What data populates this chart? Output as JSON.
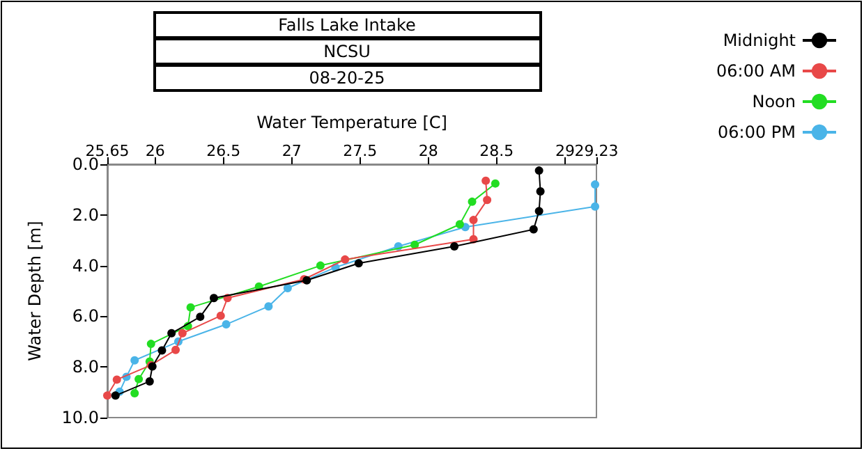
{
  "chart_data": {
    "type": "line",
    "title": "Falls Lake Intake",
    "subtitle": "NCSU",
    "annotations": [
      "08-20-25"
    ],
    "xlabel": "Water Temperature [C]",
    "ylabel": "Water Depth [m]",
    "xlim": [
      25.65,
      29.23
    ],
    "xticks": [
      25.65,
      26,
      26.5,
      27,
      27.5,
      28,
      28.5,
      29,
      29.23
    ],
    "ylim": [
      10,
      0
    ],
    "yticks": [
      {
        "value": 0,
        "label": "0.0"
      },
      {
        "value": 2,
        "label": "2.0"
      },
      {
        "value": 4,
        "label": "4.0"
      },
      {
        "value": 6,
        "label": "6.0"
      },
      {
        "value": 8,
        "label": "8.0"
      },
      {
        "value": 10,
        "label": "10.0"
      }
    ],
    "grid": false,
    "legend": "top right",
    "marker": "circle",
    "line_style": "solid",
    "series": [
      {
        "name": "Midnight",
        "color": "#000000",
        "x": [
          28.81,
          28.82,
          28.81,
          28.77,
          28.19,
          27.49,
          27.11,
          26.43,
          26.33,
          26.12,
          26.05,
          25.98,
          25.96,
          25.71
        ],
        "values": [
          0.25,
          1.07,
          1.85,
          2.57,
          3.24,
          3.91,
          4.58,
          5.28,
          6.02,
          6.67,
          7.35,
          7.98,
          8.57,
          9.13
        ]
      },
      {
        "name": "06:00 AM",
        "color": "#e84848",
        "x": [
          28.42,
          28.43,
          28.33,
          28.33,
          27.39,
          27.09,
          26.53,
          26.48,
          26.2,
          26.15,
          25.97,
          25.72,
          25.65
        ],
        "values": [
          0.65,
          1.41,
          2.2,
          2.96,
          3.76,
          4.54,
          5.28,
          5.98,
          6.67,
          7.33,
          7.93,
          8.5,
          9.13
        ]
      },
      {
        "name": "Noon",
        "color": "#22dd22",
        "x": [
          28.49,
          28.32,
          28.23,
          27.9,
          27.21,
          26.76,
          26.26,
          26.24,
          25.97,
          25.96,
          25.88,
          25.85
        ],
        "values": [
          0.76,
          1.48,
          2.37,
          3.18,
          4.0,
          4.83,
          5.65,
          6.39,
          7.09,
          7.79,
          8.48,
          9.04
        ]
      },
      {
        "name": "06:00 PM",
        "color": "#4ab4e8",
        "x": [
          29.22,
          29.22,
          28.27,
          27.78,
          27.32,
          26.97,
          26.83,
          26.52,
          26.17,
          25.85,
          25.79,
          25.74
        ],
        "values": [
          0.8,
          1.67,
          2.48,
          3.24,
          4.07,
          4.89,
          5.61,
          6.32,
          7.0,
          7.74,
          8.39,
          8.98
        ]
      }
    ]
  }
}
